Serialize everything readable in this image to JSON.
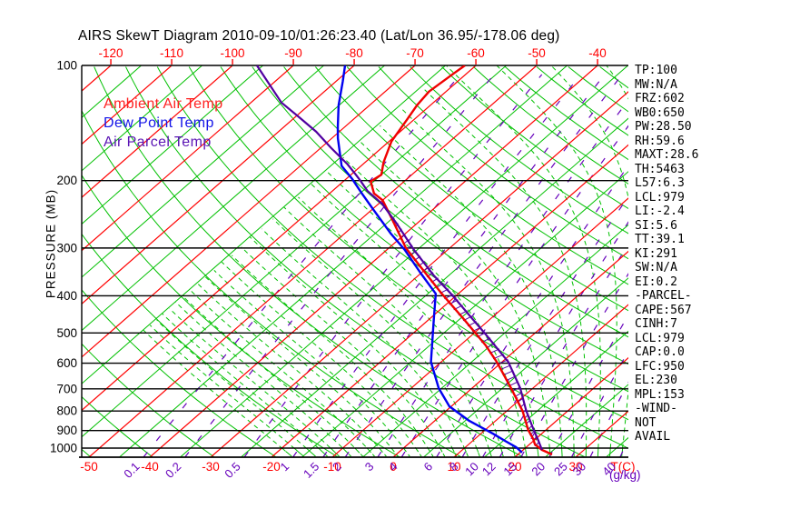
{
  "title": "AIRS SkewT Diagram 2010-09-10/01:26:23.40 (Lat/Lon 36.95/-178.06 deg)",
  "legend": [
    {
      "label": "Ambient Air Temp",
      "color": "#ff2020"
    },
    {
      "label": "Dew Point Temp",
      "color": "#1414e8"
    },
    {
      "label": "Air Parcel Temp",
      "color": "#5a14b4"
    }
  ],
  "stats": [
    "TP:100",
    "MW:N/A",
    "FRZ:602",
    "WB0:650",
    "PW:28.50",
    "RH:59.6",
    "MAXT:28.6",
    "TH:5463",
    "L57:6.3",
    "LCL:979",
    "LI:-2.4",
    "SI:5.6",
    "TT:39.1",
    "KI:291",
    "SW:N/A",
    "EI:0.2",
    "-PARCEL-",
    "CAPE:567",
    "CINH:7",
    "LCL:979",
    "CAP:0.0",
    "LFC:950",
    "EL:230",
    "MPL:153",
    "-WIND-",
    "NOT",
    "AVAIL"
  ],
  "axes": {
    "pressure_label": "PRESSURE (MB)",
    "pressure_ticks": [
      100,
      200,
      300,
      400,
      500,
      600,
      700,
      800,
      900,
      1000
    ],
    "top_temp_ticks": [
      -120,
      -110,
      -100,
      -90,
      -80,
      -70,
      -60,
      -50,
      -40
    ],
    "bottom_temp_ticks": [
      -50,
      -40,
      -30,
      -20,
      -10,
      0,
      10,
      20,
      30
    ],
    "temp_unit": "T(C)",
    "mixing_ratio_ticks": [
      0.1,
      0.2,
      0.5,
      1,
      1.5,
      2,
      3,
      4,
      6,
      8,
      10,
      12,
      15,
      20,
      25,
      30,
      40
    ],
    "mixing_unit": "(g/kg)"
  },
  "colors": {
    "isotherm_major": "#ff0000",
    "isotherm_minor": "#00c000",
    "dry_adiabat": "#00c000",
    "moist_adiabat": "#00c000",
    "mixing_ratio": "#6600bb",
    "axis": "#000000",
    "ambient": "#f00000",
    "dew_point": "#0000f0",
    "parcel": "#5000a0",
    "hatch": "#5000a0",
    "label_red": "#ff0000",
    "label_purple": "#6600bb"
  },
  "chart_data": {
    "type": "line",
    "subtype": "skewt-log-p",
    "pressure_axis_mb": {
      "min": 100,
      "max": 1056,
      "scale": "log"
    },
    "temp_axis_c": {
      "labels_surface": [
        -50,
        30
      ],
      "skew_deg": 45
    },
    "grid": {
      "isotherm_step_c": 5,
      "isotherm_major_step_c": 10,
      "dry_adiabat_step_k": 10,
      "moist_adiabat_step_c": 2,
      "mixing_ratio_lines_gkg": [
        0.1,
        0.2,
        0.5,
        1,
        1.5,
        2,
        3,
        4,
        6,
        8,
        10,
        12,
        15,
        20,
        25,
        30,
        40
      ]
    },
    "series": [
      {
        "name": "Ambient Air Temp",
        "points_p_t": [
          [
            100,
            -61.8
          ],
          [
            106,
            -62.2
          ],
          [
            117,
            -62.8
          ],
          [
            127,
            -62.2
          ],
          [
            139,
            -61.1
          ],
          [
            158,
            -59.6
          ],
          [
            179,
            -57.0
          ],
          [
            193,
            -55.0
          ],
          [
            201,
            -55.5
          ],
          [
            216,
            -52.7
          ],
          [
            225,
            -50.0
          ],
          [
            255,
            -44.4
          ],
          [
            300,
            -37.2
          ],
          [
            348,
            -29.4
          ],
          [
            395,
            -22.7
          ],
          [
            458,
            -14.6
          ],
          [
            539,
            -5.8
          ],
          [
            595,
            -0.9
          ],
          [
            697,
            6.4
          ],
          [
            800,
            12.6
          ],
          [
            897,
            17.1
          ],
          [
            947,
            19.6
          ],
          [
            978,
            20.9
          ],
          [
            1011,
            23.1
          ],
          [
            1039,
            25.6
          ]
        ]
      },
      {
        "name": "Dew Point Temp",
        "points_p_t": [
          [
            100,
            -81.5
          ],
          [
            110,
            -78.9
          ],
          [
            127,
            -75.1
          ],
          [
            145,
            -71.1
          ],
          [
            155,
            -69.0
          ],
          [
            183,
            -63.2
          ],
          [
            198,
            -59.0
          ],
          [
            216,
            -54.7
          ],
          [
            237,
            -50.0
          ],
          [
            275,
            -42.4
          ],
          [
            303,
            -37.1
          ],
          [
            348,
            -30.2
          ],
          [
            395,
            -23.7
          ],
          [
            458,
            -19.4
          ],
          [
            595,
            -11.7
          ],
          [
            697,
            -5.5
          ],
          [
            778,
            -0.3
          ],
          [
            849,
            5.7
          ],
          [
            917,
            12.0
          ],
          [
            957,
            15.3
          ],
          [
            994,
            18.3
          ],
          [
            1027,
            20.3
          ]
        ]
      },
      {
        "name": "Air Parcel Temp",
        "points_p_t": [
          [
            100,
            -96.0
          ],
          [
            125,
            -85.0
          ],
          [
            137,
            -79.1
          ],
          [
            149,
            -73.8
          ],
          [
            164,
            -68.4
          ],
          [
            181,
            -62.6
          ],
          [
            193,
            -59.2
          ],
          [
            201,
            -57.1
          ],
          [
            213,
            -54.2
          ],
          [
            230,
            -49.4
          ],
          [
            260,
            -43.1
          ],
          [
            303,
            -35.6
          ],
          [
            353,
            -27.6
          ],
          [
            395,
            -21.2
          ],
          [
            445,
            -14.7
          ],
          [
            505,
            -7.8
          ],
          [
            595,
            1.0
          ],
          [
            697,
            7.9
          ],
          [
            800,
            13.2
          ],
          [
            897,
            18.0
          ],
          [
            957,
            20.8
          ],
          [
            1011,
            23.1
          ]
        ]
      }
    ],
    "hatch_between_mb": [
      230,
      1005
    ]
  }
}
